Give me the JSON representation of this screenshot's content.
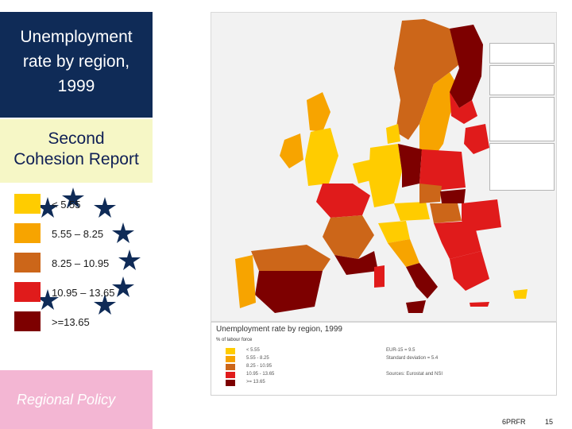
{
  "title": "Unemployment rate by region, 1999",
  "title_lines": [
    "Unemployment",
    "rate by region,",
    "1999"
  ],
  "subtitle_lines": [
    "Second",
    "Cohesion Report"
  ],
  "legend": {
    "items": [
      {
        "label": "< 5.55",
        "color": "#ffcc00"
      },
      {
        "label": "5.55 – 8.25",
        "color": "#f7a400"
      },
      {
        "label": "8.25 – 10.95",
        "color": "#cc6619"
      },
      {
        "label": "10.95 – 13.65",
        "color": "#e01b1b"
      },
      {
        "label": ">=13.65",
        "color": "#7d0000"
      }
    ]
  },
  "policy_label": "Regional Policy",
  "map_legend": {
    "title": "Unemployment rate by region, 1999",
    "subtitle": "% of labour force",
    "rows": [
      "< 5.55",
      "5.55 - 8.25",
      "8.25 - 10.95",
      "10.95 - 13.65",
      ">= 13.65"
    ],
    "right_lines": [
      "EUR-15 = 9.5",
      "Standard deviation = 5.4",
      "Sources: Eurostat and NSI"
    ]
  },
  "footer": {
    "left": "6PRFR",
    "right": "15"
  },
  "colors": {
    "title_bg": "#0f2b57",
    "subtitle_bg": "#f6f7c6",
    "policy_bg": "#f3b6d3",
    "star": "#0f2b57"
  }
}
